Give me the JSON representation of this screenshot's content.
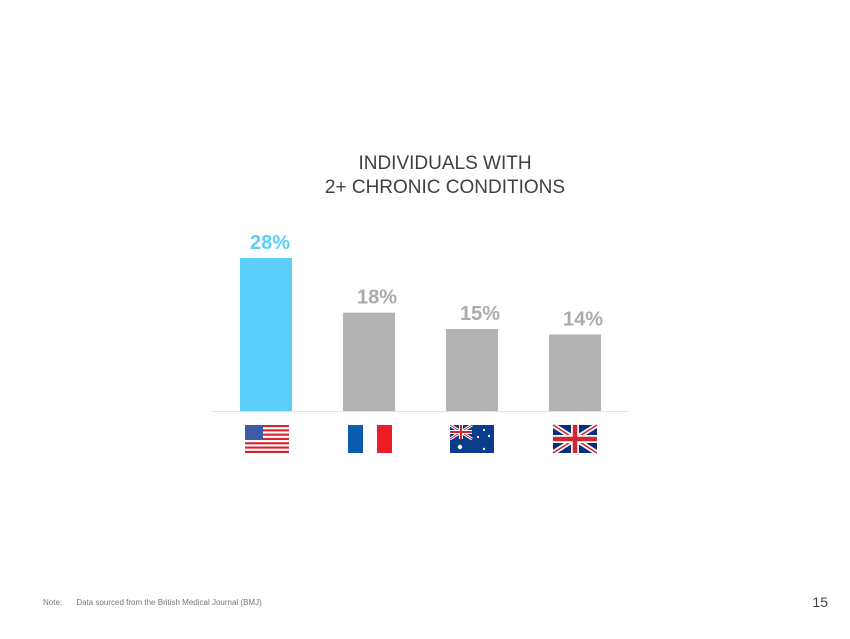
{
  "chart_data": {
    "type": "bar",
    "title_lines": [
      "INDIVIDUALS WITH",
      "2+ CHRONIC CONDITIONS"
    ],
    "categories": [
      "USA",
      "France",
      "Australia",
      "UK"
    ],
    "values": [
      28,
      18,
      15,
      14
    ],
    "data_labels": [
      "28%",
      "18%",
      "15%",
      "14%"
    ],
    "unit": "%",
    "ylim": [
      0,
      28
    ],
    "grid": false,
    "colors": {
      "highlight": "#5BCEFA",
      "default": "#B3B3B3",
      "highlight_label": "#5BCEFA",
      "default_label": "#ABABAB"
    },
    "highlight_index": 0,
    "x_axis_icons": [
      "us-flag",
      "france-flag",
      "australia-flag",
      "uk-flag"
    ]
  },
  "footer": {
    "note_label": "Note:",
    "note_text": "Data sourced from the British Medical Journal (BMJ)",
    "page_number": "15"
  }
}
